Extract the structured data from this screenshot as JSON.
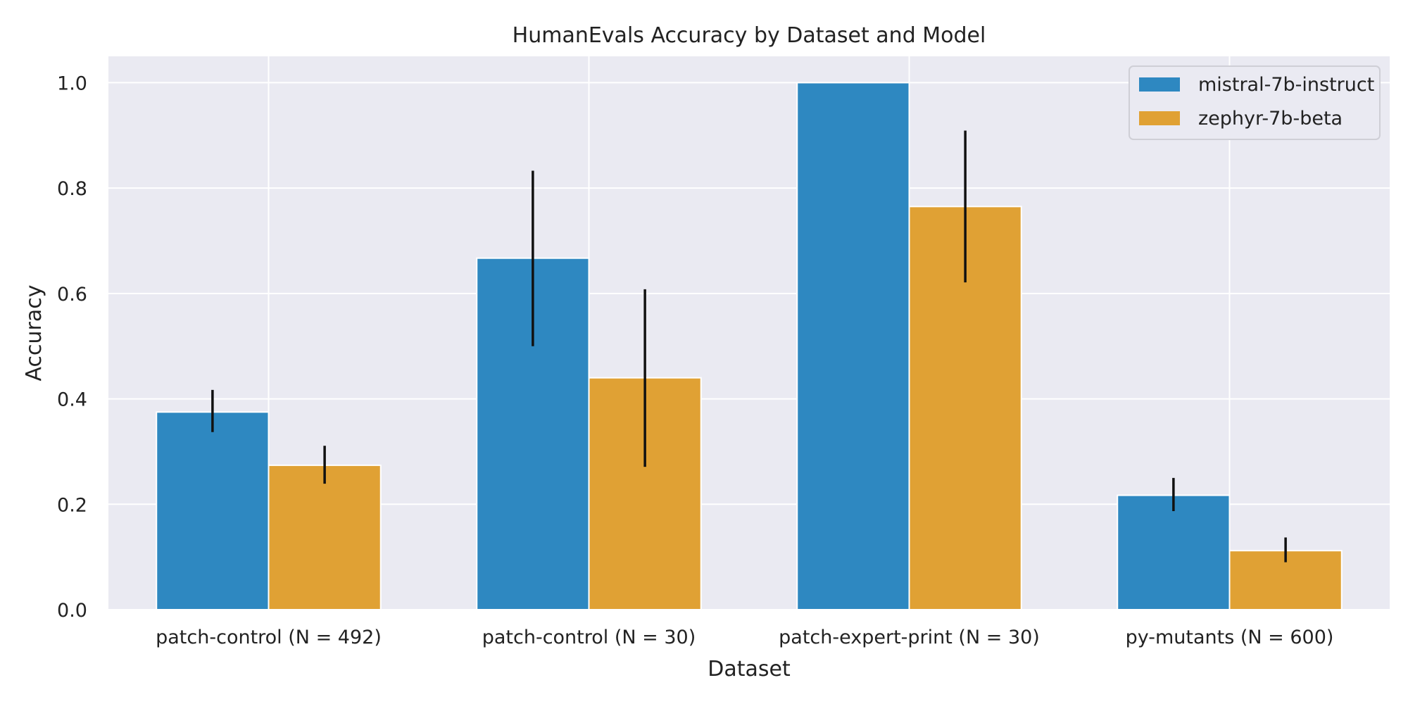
{
  "chart_data": {
    "type": "bar",
    "title": "HumanEvals Accuracy by Dataset and Model",
    "xlabel": "Dataset",
    "ylabel": "Accuracy",
    "categories": [
      "patch-control (N = 492)",
      "patch-control (N = 30)",
      "patch-expert-print (N = 30)",
      "py-mutants (N = 600)"
    ],
    "series": [
      {
        "name": "mistral-7b-instruct",
        "color": "#2e88c1",
        "values": [
          0.375,
          0.667,
          1.0,
          0.217
        ],
        "err_low": [
          0.337,
          0.5,
          1.0,
          0.187
        ],
        "err_high": [
          0.417,
          0.833,
          1.0,
          0.25
        ]
      },
      {
        "name": "zephyr-7b-beta",
        "color": "#e0a134",
        "values": [
          0.274,
          0.44,
          0.765,
          0.112
        ],
        "err_low": [
          0.239,
          0.271,
          0.621,
          0.09
        ],
        "err_high": [
          0.311,
          0.608,
          0.909,
          0.137
        ]
      }
    ],
    "ylim": [
      0,
      1.05
    ],
    "yticks": [
      "0.0",
      "0.2",
      "0.4",
      "0.6",
      "0.8",
      "1.0"
    ],
    "grid": true,
    "legend_position": "top-right"
  }
}
